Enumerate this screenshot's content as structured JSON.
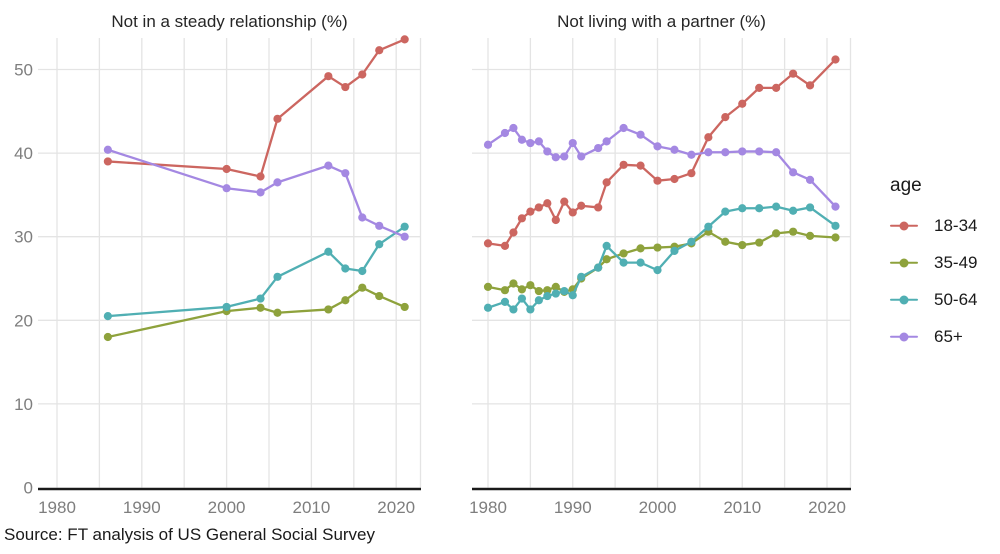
{
  "titles": {
    "left": "Not in a steady relationship (%)",
    "right": "Not living with a partner (%)"
  },
  "source": "Source: FT analysis of US General Social Survey",
  "legend": {
    "title": "age",
    "items": [
      {
        "label": "18-34",
        "color": "#CC6660"
      },
      {
        "label": "35-49",
        "color": "#8EA23C"
      },
      {
        "label": "50-64",
        "color": "#50AFB3"
      },
      {
        "label": "65+",
        "color": "#A488E2"
      }
    ]
  },
  "axes": {
    "y_ticks": [
      0,
      10,
      20,
      30,
      40,
      50
    ],
    "x_ticks": [
      1980,
      1990,
      2000,
      2010,
      2020
    ],
    "x_gridline_years": [
      1980,
      1985,
      1990,
      1995,
      2000,
      2005,
      2010,
      2015,
      2020
    ],
    "grid_color": "#E4E4E4",
    "axis_line_color": "#1A1A1A",
    "tick_label_color": "#7E7E7E"
  },
  "chart_data": [
    {
      "type": "line",
      "title": "Not in a steady relationship (%)",
      "xlabel": "",
      "ylabel": "",
      "xlim": [
        1978,
        2023
      ],
      "ylim": [
        0,
        54
      ],
      "grid": true,
      "legend_position": "right",
      "x": [
        1986,
        2000,
        2004,
        2006,
        2012,
        2014,
        2016,
        2018,
        2021
      ],
      "series": [
        {
          "name": "18-34",
          "color": "#CC6660",
          "values": [
            39.0,
            38.1,
            37.2,
            44.1,
            49.2,
            47.9,
            49.4,
            52.3,
            53.6
          ]
        },
        {
          "name": "35-49",
          "color": "#8EA23C",
          "values": [
            18.0,
            21.1,
            21.5,
            20.9,
            21.3,
            22.4,
            23.9,
            22.9,
            21.6
          ]
        },
        {
          "name": "50-64",
          "color": "#50AFB3",
          "values": [
            20.5,
            21.6,
            22.6,
            25.2,
            28.2,
            26.2,
            25.9,
            29.1,
            31.2
          ]
        },
        {
          "name": "65+",
          "color": "#A488E2",
          "values": [
            40.4,
            35.8,
            35.3,
            36.5,
            38.5,
            37.6,
            32.3,
            31.3,
            30.0
          ]
        }
      ]
    },
    {
      "type": "line",
      "title": "Not living with a partner (%)",
      "xlabel": "",
      "ylabel": "",
      "xlim": [
        1978,
        2023
      ],
      "ylim": [
        0,
        54
      ],
      "grid": true,
      "legend_position": "right",
      "x": [
        1980,
        1982,
        1983,
        1984,
        1985,
        1986,
        1987,
        1988,
        1989,
        1990,
        1991,
        1993,
        1994,
        1996,
        1998,
        2000,
        2002,
        2004,
        2006,
        2008,
        2010,
        2012,
        2014,
        2016,
        2018,
        2021
      ],
      "series": [
        {
          "name": "18-34",
          "color": "#CC6660",
          "values": [
            29.2,
            28.9,
            30.5,
            32.2,
            33.0,
            33.5,
            34.0,
            32.0,
            34.2,
            32.9,
            33.7,
            33.5,
            36.5,
            38.6,
            38.5,
            36.7,
            36.9,
            37.6,
            41.9,
            44.3,
            45.9,
            47.8,
            47.8,
            49.5,
            48.1,
            51.2
          ]
        },
        {
          "name": "35-49",
          "color": "#8EA23C",
          "values": [
            24.0,
            23.6,
            24.4,
            23.7,
            24.2,
            23.5,
            23.6,
            24.0,
            23.4,
            23.7,
            25.0,
            26.3,
            27.3,
            28.0,
            28.6,
            28.7,
            28.8,
            29.2,
            30.6,
            29.4,
            29.0,
            29.3,
            30.4,
            30.6,
            30.1,
            29.9
          ]
        },
        {
          "name": "50-64",
          "color": "#50AFB3",
          "values": [
            21.5,
            22.2,
            21.3,
            22.6,
            21.3,
            22.4,
            22.9,
            23.2,
            23.5,
            23.0,
            25.2,
            26.3,
            28.9,
            26.9,
            26.9,
            26.0,
            28.3,
            29.4,
            31.2,
            33.0,
            33.4,
            33.4,
            33.6,
            33.1,
            33.5,
            31.3
          ]
        },
        {
          "name": "65+",
          "color": "#A488E2",
          "values": [
            41.0,
            42.4,
            43.0,
            41.6,
            41.2,
            41.4,
            40.2,
            39.5,
            39.6,
            41.2,
            39.6,
            40.6,
            41.4,
            43.0,
            42.2,
            40.8,
            40.4,
            39.8,
            40.1,
            40.1,
            40.2,
            40.2,
            40.1,
            37.7,
            36.8,
            33.6
          ]
        }
      ]
    }
  ]
}
